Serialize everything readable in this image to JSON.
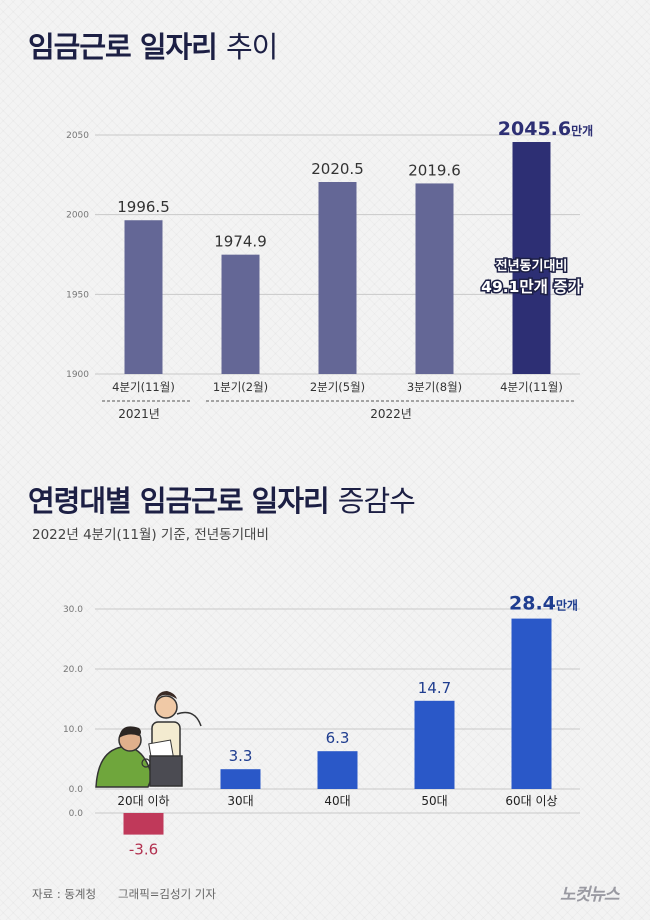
{
  "chart1": {
    "title_main": "임금근로 일자리",
    "title_accent": "추이",
    "chart_data": {
      "type": "bar",
      "categories": [
        "4분기(11월)",
        "1분기(2월)",
        "2분기(5월)",
        "3분기(8월)",
        "4분기(11월)"
      ],
      "values": [
        1996.5,
        1974.9,
        2020.5,
        2019.6,
        2045.6
      ],
      "value_labels": [
        "1996.5",
        "1974.9",
        "2020.5",
        "2019.6",
        "2045.6"
      ],
      "unit_suffix": "만개",
      "ylim": [
        1900,
        2050
      ],
      "yticks": [
        "1900",
        "1950",
        "2000",
        "2050"
      ],
      "year_groups": [
        "2021년",
        "2022년"
      ],
      "annotation": [
        "전년동기대비",
        "49.1만개 증가"
      ],
      "colors": {
        "bar": "#646796",
        "highlight": "#2d2f74",
        "value_text": "#333333",
        "highlight_text": "#2d2f74"
      }
    }
  },
  "chart2": {
    "title_main": "연령대별 임금근로 일자리",
    "title_accent": "증감수",
    "subtitle": "2022년 4분기(11월) 기준, 전년동기대비",
    "chart_data": {
      "type": "bar",
      "categories": [
        "20대 이하",
        "30대",
        "40대",
        "50대",
        "60대 이상"
      ],
      "values": [
        -3.6,
        3.3,
        6.3,
        14.7,
        28.4
      ],
      "value_labels": [
        "-3.6",
        "3.3",
        "6.3",
        "14.7",
        "28.4"
      ],
      "unit_suffix": "만개",
      "ylim": [
        -5,
        30
      ],
      "yticks": [
        "0.0",
        "10.0",
        "20.0",
        "30.0"
      ],
      "neg_tick": "0.0",
      "colors": {
        "positive": "#2a58c8",
        "negative": "#c0395a",
        "value_text": "#1f3d8f",
        "negative_text": "#b2304f"
      }
    }
  },
  "footer": {
    "source": "자료 : 동계청",
    "credit": "그래픽=김성기 기자"
  },
  "logo": "노컷뉴스"
}
